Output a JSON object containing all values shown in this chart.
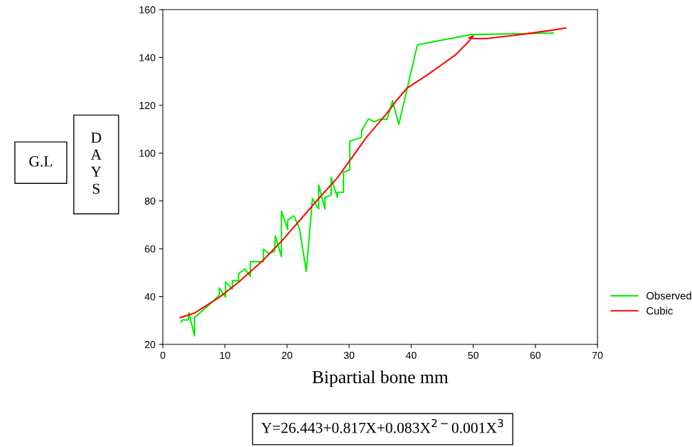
{
  "chart_data": {
    "type": "line",
    "xlabel": "Bipartial bone mm",
    "xlim": [
      0,
      70
    ],
    "xticks": [
      0,
      10,
      20,
      30,
      40,
      50,
      60,
      70
    ],
    "ylim": [
      20,
      160
    ],
    "yticks": [
      20,
      40,
      60,
      80,
      100,
      120,
      140,
      160
    ],
    "grid": false,
    "legend": "right",
    "marker": "none",
    "line_style": "solid",
    "series": [
      {
        "name": "Observed",
        "color": "#00ee00",
        "x": [
          3.0,
          3.1,
          4.1,
          4.2,
          5.1,
          5.1,
          7.9,
          9.1,
          9.1,
          10.1,
          10.1,
          11.2,
          11.2,
          12.2,
          12.2,
          13.2,
          14.1,
          14.1,
          16.2,
          16.2,
          17.0,
          18.0,
          18.1,
          19.1,
          19.1,
          20.1,
          20.1,
          21.1,
          22.0,
          23.1,
          24.1,
          25.1,
          25.1,
          26.1,
          26.1,
          27.1,
          27.1,
          28.1,
          28.1,
          29.1,
          29.1,
          30.1,
          30.1,
          32.0,
          32.0,
          33.1,
          34.1,
          35.1,
          36.1,
          37.0,
          38.0,
          41.0,
          49.7,
          62.9
        ],
        "values": [
          29.3,
          30.2,
          30.2,
          33.2,
          23.6,
          31.2,
          37.6,
          40.7,
          43.6,
          39.8,
          46.1,
          43.2,
          46.6,
          46.6,
          49.5,
          51.6,
          48.5,
          54.6,
          54.6,
          59.8,
          58.0,
          58.9,
          65.4,
          56.7,
          75.7,
          68.0,
          71.9,
          73.8,
          68.5,
          50.5,
          81.0,
          76.7,
          86.7,
          76.7,
          81.5,
          82.4,
          89.9,
          81.5,
          83.6,
          83.6,
          92.0,
          93.0,
          105.0,
          106.6,
          109.3,
          114.3,
          113.1,
          114.3,
          114.1,
          121.9,
          112.0,
          145.3,
          149.6,
          150.2
        ]
      },
      {
        "name": "Cubic",
        "color": "#ff0000",
        "x": [
          2.8,
          5.1,
          9.1,
          12.2,
          16.1,
          19.1,
          22.0,
          25.1,
          28.1,
          30.1,
          32.7,
          36.0,
          37.7,
          39.3,
          42.7,
          47.1,
          49.3,
          50.0,
          49.3,
          50.1,
          52.1,
          57.1,
          62.7,
          64.9
        ],
        "values": [
          31.2,
          33.1,
          39.7,
          46.0,
          55.1,
          63.1,
          71.7,
          81.0,
          89.6,
          96.8,
          106.3,
          116.4,
          122.2,
          127.1,
          132.9,
          141.0,
          146.8,
          149.0,
          148.2,
          147.9,
          147.9,
          149.4,
          151.4,
          152.3
        ]
      }
    ],
    "annotations": [
      "G.L",
      "DAYS",
      "Y=26.443+0.817X+0.083X$^{2−}$0.001X$^{3}$"
    ]
  }
}
